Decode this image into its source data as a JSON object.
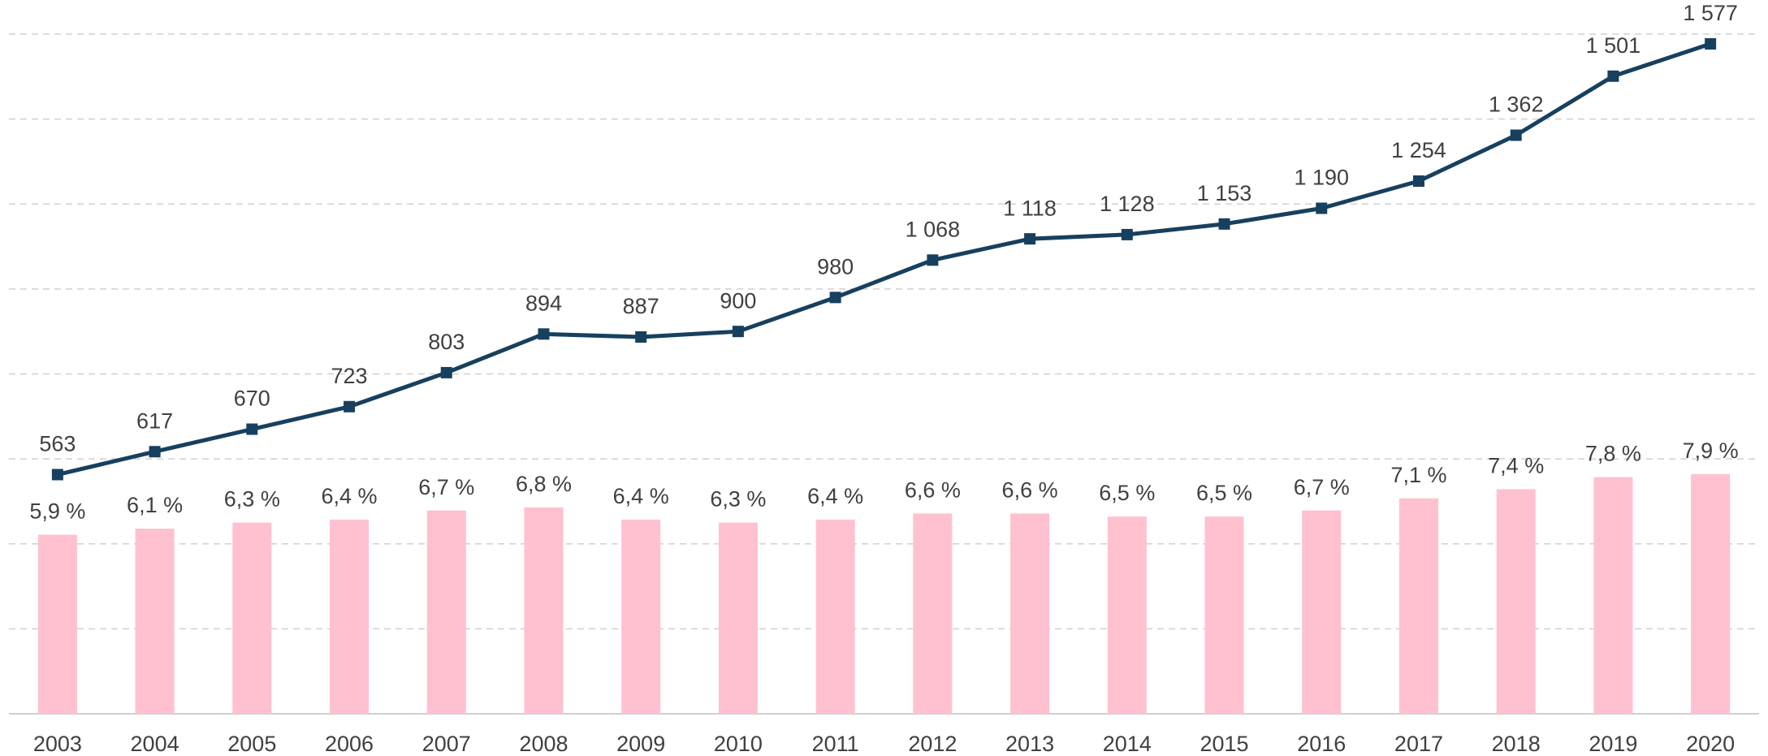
{
  "chart_data": {
    "type": "bar-line",
    "categories": [
      "2003",
      "2004",
      "2005",
      "2006",
      "2007",
      "2008",
      "2009",
      "2010",
      "2011",
      "2012",
      "2013",
      "2014",
      "2015",
      "2016",
      "2017",
      "2018",
      "2019",
      "2020"
    ],
    "ylim": [
      0,
      1600
    ],
    "yticks": [
      0,
      200,
      400,
      600,
      800,
      1000,
      1200,
      1400,
      1600
    ],
    "y2lim": [
      0,
      22.4
    ],
    "grid": true,
    "series": [
      {
        "type": "line",
        "color": "#17405f",
        "values": [
          563,
          617,
          670,
          723,
          803,
          894,
          887,
          900,
          980,
          1068,
          1118,
          1128,
          1153,
          1190,
          1254,
          1362,
          1501,
          1577
        ],
        "value_labels": [
          "563",
          "617",
          "670",
          "723",
          "803",
          "894",
          "887",
          "900",
          "980",
          "1 068",
          "1 118",
          "1 128",
          "1 153",
          "1 190",
          "1 254",
          "1 362",
          "1 501",
          "1 577"
        ]
      },
      {
        "type": "bar",
        "axis": "y2",
        "color": "#ffc0cf",
        "values": [
          5.9,
          6.1,
          6.3,
          6.4,
          6.7,
          6.8,
          6.4,
          6.3,
          6.4,
          6.6,
          6.6,
          6.5,
          6.5,
          6.7,
          7.1,
          7.4,
          7.8,
          7.9
        ],
        "value_labels": [
          "5,9 %",
          "6,1 %",
          "6,3 %",
          "6,4 %",
          "6,7 %",
          "6,8 %",
          "6,4 %",
          "6,3 %",
          "6,4 %",
          "6,6 %",
          "6,6 %",
          "6,5 %",
          "6,5 %",
          "6,7 %",
          "7,1 %",
          "7,4 %",
          "7,8 %",
          "7,9 %"
        ]
      }
    ]
  }
}
